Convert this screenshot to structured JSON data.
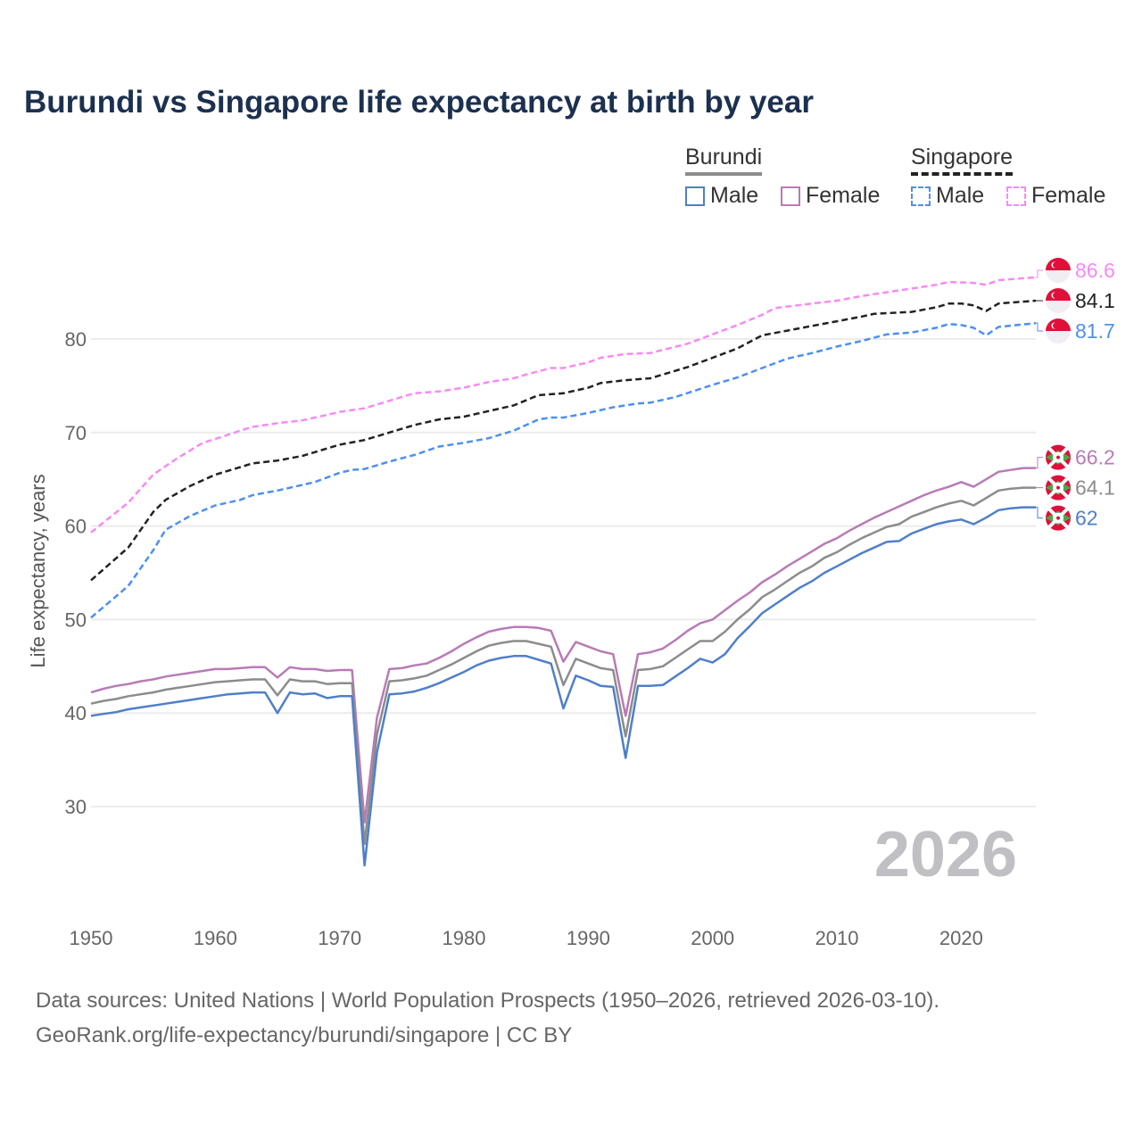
{
  "title": "Burundi vs Singapore life expectancy at birth by year",
  "legend": {
    "groups": [
      {
        "name": "Burundi",
        "items": [
          "Male",
          "Female"
        ]
      },
      {
        "name": "Singapore",
        "items": [
          "Male",
          "Female"
        ]
      }
    ]
  },
  "footer": {
    "line1": "Data sources: United Nations | World Population Prospects (1950–2026, retrieved 2026-03-10).",
    "line2": "GeoRank.org/life-expectancy/burundi/singapore | CC BY"
  },
  "chart_data": {
    "type": "line",
    "title": "Burundi vs Singapore life expectancy at birth by year",
    "xlabel": "",
    "ylabel": "Life expectancy, years",
    "xlim": [
      1950,
      2026
    ],
    "ylim": [
      19.4,
      90
    ],
    "x_ticks": [
      1950,
      1960,
      1970,
      1980,
      1990,
      2000,
      2010,
      2020
    ],
    "y_ticks": [
      30,
      40,
      50,
      60,
      70,
      80
    ],
    "grid": true,
    "watermark": "2026",
    "series": [
      {
        "name": "Singapore Female",
        "color": "#f78af5",
        "dash": true,
        "end_label": "86.6",
        "flag": "singapore",
        "points": [
          [
            1950,
            59.3
          ],
          [
            1953,
            62.5
          ],
          [
            1955,
            65.5
          ],
          [
            1957,
            67.3
          ],
          [
            1959,
            68.9
          ],
          [
            1960,
            69.3
          ],
          [
            1962,
            70.2
          ],
          [
            1963,
            70.6
          ],
          [
            1965,
            71.0
          ],
          [
            1967,
            71.3
          ],
          [
            1970,
            72.2
          ],
          [
            1972,
            72.6
          ],
          [
            1974,
            73.4
          ],
          [
            1976,
            74.2
          ],
          [
            1978,
            74.4
          ],
          [
            1980,
            74.8
          ],
          [
            1982,
            75.4
          ],
          [
            1984,
            75.8
          ],
          [
            1985,
            76.2
          ],
          [
            1987,
            76.9
          ],
          [
            1988,
            76.9
          ],
          [
            1990,
            77.5
          ],
          [
            1991,
            78.0
          ],
          [
            1993,
            78.4
          ],
          [
            1995,
            78.5
          ],
          [
            1998,
            79.5
          ],
          [
            2000,
            80.5
          ],
          [
            2002,
            81.5
          ],
          [
            2004,
            82.6
          ],
          [
            2005,
            83.3
          ],
          [
            2008,
            83.8
          ],
          [
            2010,
            84.1
          ],
          [
            2012,
            84.6
          ],
          [
            2014,
            85.0
          ],
          [
            2016,
            85.4
          ],
          [
            2018,
            85.8
          ],
          [
            2019,
            86.1
          ],
          [
            2021,
            86.0
          ],
          [
            2022,
            85.8
          ],
          [
            2023,
            86.3
          ],
          [
            2026,
            86.6
          ]
        ]
      },
      {
        "name": "Singapore Total",
        "color": "#222222",
        "dash": true,
        "end_label": "84.1",
        "flag": "singapore",
        "points": [
          [
            1950,
            54.2
          ],
          [
            1953,
            57.7
          ],
          [
            1955,
            61.5
          ],
          [
            1956,
            62.8
          ],
          [
            1958,
            64.3
          ],
          [
            1960,
            65.5
          ],
          [
            1963,
            66.7
          ],
          [
            1965,
            67.0
          ],
          [
            1967,
            67.5
          ],
          [
            1970,
            68.7
          ],
          [
            1972,
            69.2
          ],
          [
            1974,
            70.0
          ],
          [
            1976,
            70.8
          ],
          [
            1978,
            71.4
          ],
          [
            1980,
            71.7
          ],
          [
            1982,
            72.3
          ],
          [
            1984,
            72.9
          ],
          [
            1986,
            74.0
          ],
          [
            1988,
            74.2
          ],
          [
            1990,
            74.8
          ],
          [
            1991,
            75.3
          ],
          [
            1993,
            75.6
          ],
          [
            1995,
            75.8
          ],
          [
            1998,
            77.0
          ],
          [
            2000,
            78.0
          ],
          [
            2002,
            79.0
          ],
          [
            2004,
            80.4
          ],
          [
            2006,
            80.9
          ],
          [
            2008,
            81.4
          ],
          [
            2010,
            81.9
          ],
          [
            2012,
            82.4
          ],
          [
            2013,
            82.7
          ],
          [
            2016,
            82.9
          ],
          [
            2018,
            83.4
          ],
          [
            2019,
            83.8
          ],
          [
            2020,
            83.8
          ],
          [
            2021,
            83.6
          ],
          [
            2022,
            83.0
          ],
          [
            2023,
            83.8
          ],
          [
            2026,
            84.1
          ]
        ]
      },
      {
        "name": "Singapore Male",
        "color": "#4d90f0",
        "dash": true,
        "end_label": "81.7",
        "flag": "singapore",
        "points": [
          [
            1950,
            50.2
          ],
          [
            1953,
            53.6
          ],
          [
            1955,
            57.4
          ],
          [
            1956,
            59.6
          ],
          [
            1958,
            61.1
          ],
          [
            1960,
            62.2
          ],
          [
            1962,
            62.8
          ],
          [
            1963,
            63.3
          ],
          [
            1965,
            63.8
          ],
          [
            1967,
            64.4
          ],
          [
            1968,
            64.7
          ],
          [
            1970,
            65.7
          ],
          [
            1971,
            66.0
          ],
          [
            1972,
            66.1
          ],
          [
            1974,
            66.9
          ],
          [
            1976,
            67.6
          ],
          [
            1978,
            68.5
          ],
          [
            1980,
            68.9
          ],
          [
            1982,
            69.4
          ],
          [
            1984,
            70.2
          ],
          [
            1986,
            71.4
          ],
          [
            1987,
            71.6
          ],
          [
            1988,
            71.6
          ],
          [
            1990,
            72.1
          ],
          [
            1992,
            72.7
          ],
          [
            1994,
            73.1
          ],
          [
            1995,
            73.2
          ],
          [
            1997,
            73.8
          ],
          [
            2000,
            75.1
          ],
          [
            2002,
            75.9
          ],
          [
            2004,
            76.9
          ],
          [
            2006,
            77.9
          ],
          [
            2008,
            78.5
          ],
          [
            2010,
            79.2
          ],
          [
            2012,
            79.8
          ],
          [
            2014,
            80.5
          ],
          [
            2016,
            80.7
          ],
          [
            2018,
            81.2
          ],
          [
            2019,
            81.6
          ],
          [
            2020,
            81.5
          ],
          [
            2021,
            81.2
          ],
          [
            2022,
            80.4
          ],
          [
            2023,
            81.3
          ],
          [
            2026,
            81.7
          ]
        ]
      },
      {
        "name": "Burundi Female",
        "color": "#b87bb5",
        "dash": false,
        "end_label": "66.2",
        "flag": "burundi",
        "start_year": 1950,
        "values": [
          42.2,
          42.6,
          42.9,
          43.1,
          43.4,
          43.6,
          43.9,
          44.1,
          44.3,
          44.5,
          44.7,
          44.7,
          44.8,
          44.9,
          44.9,
          43.8,
          44.9,
          44.7,
          44.7,
          44.5,
          44.6,
          44.6,
          28.3,
          39.5,
          44.7,
          44.8,
          45.1,
          45.3,
          45.9,
          46.6,
          47.4,
          48.1,
          48.7,
          49.0,
          49.2,
          49.2,
          49.1,
          48.8,
          45.5,
          47.6,
          47.1,
          46.6,
          46.3,
          39.7,
          46.3,
          46.5,
          46.9,
          47.8,
          48.8,
          49.6,
          50.0,
          51.0,
          52.0,
          52.9,
          54.0,
          54.8,
          55.7,
          56.5,
          57.3,
          58.1,
          58.7,
          59.5,
          60.2,
          60.9,
          61.5,
          62.1,
          62.7,
          63.3,
          63.8,
          64.2,
          64.7,
          64.2,
          65.0,
          65.8,
          66.0,
          66.2,
          66.2
        ]
      },
      {
        "name": "Burundi Total",
        "color": "#8c8c8c",
        "dash": false,
        "end_label": "64.1",
        "flag": "burundi",
        "start_year": 1950,
        "values": [
          41.0,
          41.3,
          41.5,
          41.8,
          42.0,
          42.2,
          42.5,
          42.7,
          42.9,
          43.1,
          43.3,
          43.4,
          43.5,
          43.6,
          43.6,
          41.9,
          43.6,
          43.4,
          43.4,
          43.1,
          43.2,
          43.2,
          26.0,
          37.7,
          43.4,
          43.5,
          43.7,
          44.0,
          44.6,
          45.2,
          45.9,
          46.6,
          47.2,
          47.5,
          47.7,
          47.7,
          47.4,
          47.1,
          43.0,
          45.8,
          45.3,
          44.8,
          44.6,
          37.5,
          44.6,
          44.7,
          45.0,
          45.9,
          46.8,
          47.7,
          47.7,
          48.7,
          50.0,
          51.1,
          52.4,
          53.2,
          54.1,
          55.0,
          55.7,
          56.6,
          57.2,
          58.0,
          58.7,
          59.3,
          59.9,
          60.2,
          61.0,
          61.5,
          62.0,
          62.4,
          62.7,
          62.2,
          63.0,
          63.8,
          64.0,
          64.1,
          64.1
        ]
      },
      {
        "name": "Burundi Male",
        "color": "#4f7fc9",
        "dash": false,
        "end_label": "62",
        "flag": "burundi",
        "start_year": 1950,
        "values": [
          39.7,
          39.9,
          40.1,
          40.4,
          40.6,
          40.8,
          41.0,
          41.2,
          41.4,
          41.6,
          41.8,
          42.0,
          42.1,
          42.2,
          42.2,
          40.0,
          42.2,
          42.0,
          42.1,
          41.6,
          41.8,
          41.8,
          23.7,
          35.8,
          42.0,
          42.1,
          42.3,
          42.7,
          43.2,
          43.8,
          44.4,
          45.1,
          45.6,
          45.9,
          46.1,
          46.1,
          45.7,
          45.3,
          40.5,
          44.0,
          43.5,
          42.9,
          42.8,
          35.2,
          42.9,
          42.9,
          43.0,
          43.9,
          44.8,
          45.8,
          45.4,
          46.3,
          48.0,
          49.3,
          50.7,
          51.6,
          52.5,
          53.4,
          54.1,
          55.0,
          55.7,
          56.4,
          57.1,
          57.7,
          58.3,
          58.4,
          59.2,
          59.7,
          60.2,
          60.5,
          60.7,
          60.2,
          60.9,
          61.7,
          61.9,
          62.0,
          62.0
        ]
      }
    ]
  }
}
